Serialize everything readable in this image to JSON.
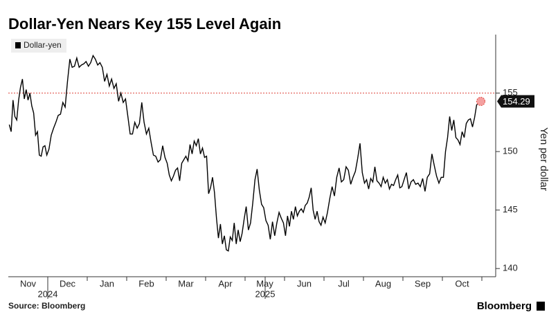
{
  "chart_data": {
    "type": "line",
    "title": "Dollar-Yen Nears Key 155 Level Again",
    "y_label": "Yen per dollar",
    "source": "Source: Bloomberg",
    "brand": "Bloomberg",
    "categories": [
      "Nov",
      "Dec",
      "Jan",
      "Feb",
      "Mar",
      "Apr",
      "May",
      "Jun",
      "Jul",
      "Aug",
      "Sep",
      "Oct"
    ],
    "years": [
      "2024",
      "2025"
    ],
    "series": [
      {
        "name": "Dollar-yen",
        "color": "#000000",
        "values": [
          [
            152.3,
            151.7,
            154.4,
            153.0,
            152.7,
            154.4,
            155.5,
            156.2,
            154.5,
            155.3,
            154.4,
            155.0,
            153.9,
            153.3,
            151.4,
            151.7,
            149.7,
            149.6,
            150.4,
            150.5,
            149.7
          ],
          [
            150.2,
            151.4,
            152.0,
            152.5,
            153.1,
            153.2,
            154.2,
            153.8,
            156.0,
            157.9,
            157.2,
            157.3,
            158.0,
            157.2,
            157.4,
            157.5,
            157.7
          ],
          [
            157.3,
            157.6,
            158.2,
            157.9,
            157.4,
            157.6,
            157.2,
            156.0,
            156.6,
            155.6,
            156.2,
            155.4,
            155.8,
            154.3,
            155.0,
            154.2,
            154.5
          ],
          [
            153.0,
            151.5,
            151.5,
            152.5,
            152.0,
            152.4,
            154.2,
            152.5,
            151.5,
            152.0,
            150.8,
            149.7,
            149.6,
            149.1,
            149.3,
            150.5,
            149.5
          ],
          [
            149.0,
            148.0,
            147.5,
            147.9,
            148.4,
            148.6,
            147.5,
            149.0,
            149.3,
            149.6,
            149.2,
            150.6,
            149.8,
            150.9,
            150.5,
            151.1,
            149.8,
            150.3,
            149.5
          ],
          [
            149.6,
            146.4,
            146.9,
            147.8,
            146.5,
            144.3,
            142.6,
            143.8,
            142.1,
            142.8,
            141.6,
            141.5,
            142.7,
            142.4,
            143.9,
            142.1,
            143.3,
            142.3,
            143.0,
            144.2
          ],
          [
            145.3,
            143.3,
            143.9,
            145.6,
            147.6,
            148.5,
            146.7,
            145.5,
            145.2,
            144.1,
            143.7,
            142.5,
            144.0,
            142.8,
            143.9,
            144.8,
            144.3,
            143.9
          ],
          [
            142.8,
            144.5,
            143.6,
            144.9,
            144.2,
            145.3,
            144.5,
            144.9,
            145.1,
            144.8,
            145.4,
            145.6,
            146.1,
            146.9,
            145.0,
            144.2,
            144.9,
            144.0,
            143.7,
            144.4
          ],
          [
            143.9,
            144.8,
            146.0,
            147.0,
            146.2,
            147.8,
            148.6,
            147.4,
            147.6,
            148.7,
            148.4,
            147.2,
            147.8,
            148.3,
            149.4,
            150.7,
            148.2
          ],
          [
            147.3,
            147.6,
            146.8,
            147.7,
            147.4,
            148.7,
            147.5,
            147.3,
            147.0,
            147.8,
            147.3,
            147.6,
            146.8,
            147.2,
            147.1,
            147.6,
            148.0,
            146.9,
            147.0
          ],
          [
            147.6,
            148.2,
            146.8,
            147.4,
            147.6,
            147.2,
            147.3,
            147.0,
            147.7,
            146.6,
            147.8,
            148.1,
            149.8,
            148.8,
            147.9,
            147.3,
            147.8
          ],
          [
            147.8,
            150.0,
            151.2,
            153.0,
            151.8,
            152.7,
            151.2,
            151.0,
            150.6,
            151.7,
            151.2,
            152.4,
            152.7,
            152.8,
            152.1,
            152.9,
            154.0,
            154.1,
            154.29
          ]
        ]
      }
    ],
    "reference_line": {
      "value": 155,
      "color": "#e0473e"
    },
    "ylim": [
      139.3,
      160
    ],
    "yticks": [
      140,
      145,
      150,
      155
    ],
    "legend": "top-left"
  }
}
